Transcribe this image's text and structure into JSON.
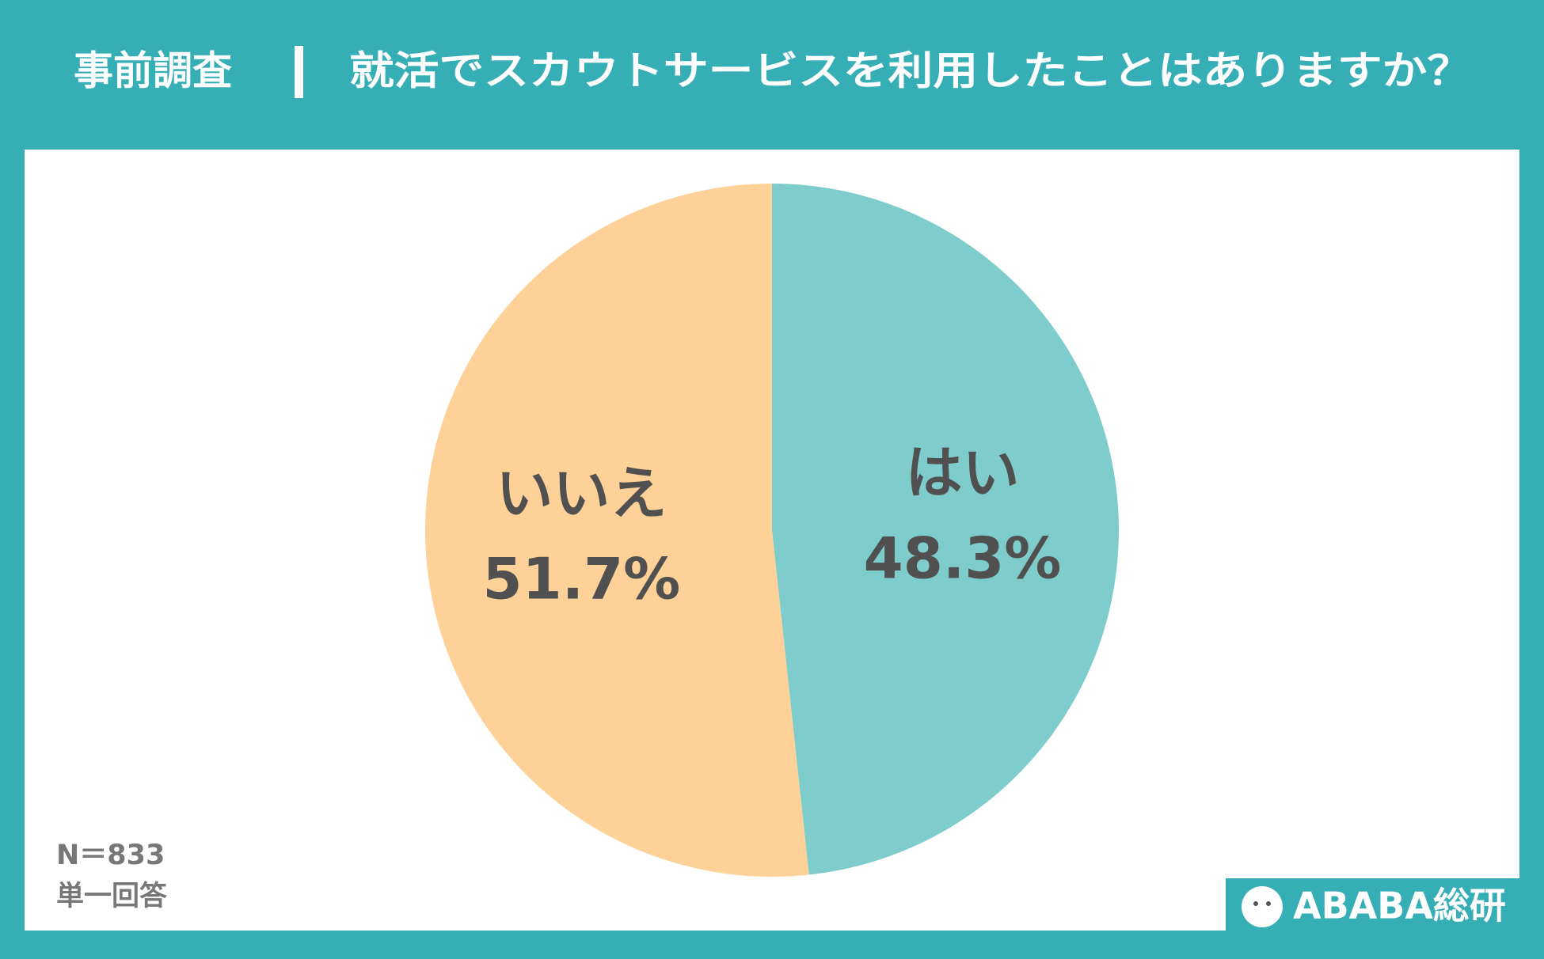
{
  "header": {
    "label": "事前調査",
    "question": "就活でスカウトサービスを利用したことはありますか？"
  },
  "chart_data": {
    "type": "pie",
    "categories": [
      "はい",
      "いいえ"
    ],
    "values": [
      48.3,
      51.7
    ],
    "value_labels": [
      "48.3%",
      "51.7%"
    ],
    "colors": [
      "#7ecccc",
      "#fdd197"
    ]
  },
  "notes": {
    "sample": "N＝833",
    "answer_type": "単一回答"
  },
  "logo": "ABABA総研"
}
